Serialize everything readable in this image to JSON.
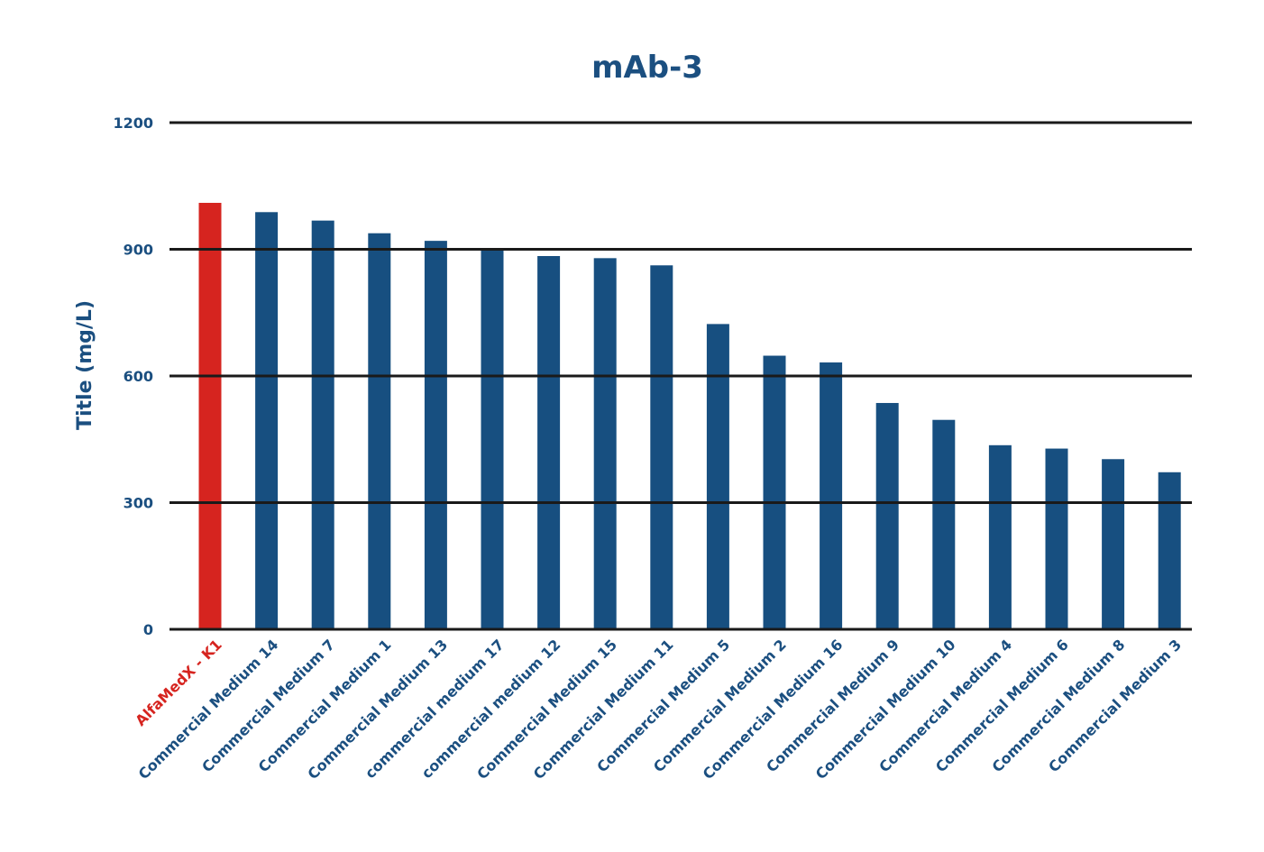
{
  "chart_data": {
    "type": "bar",
    "title": "mAb-3",
    "xlabel": "",
    "ylabel": "Title (mg/L)",
    "ylim": [
      0,
      1200
    ],
    "yticks": [
      0,
      300,
      600,
      900,
      1200
    ],
    "grid": true,
    "categories": [
      "AlfaMedX - K1",
      "Commercial Medium 14",
      "Commercial Medium 7",
      "Commercial Medium 1",
      "Commercial Medium 13",
      "commercial medium 17",
      "commercial medium 12",
      "Commercial Medium 15",
      "Commercial Medium 11",
      "Commercial Medium 5",
      "Commercial Medium 2",
      "Commercial Medium 16",
      "Commercial Medium 9",
      "Commercial Medium 10",
      "Commercial Medium 4",
      "Commercial Medium 6",
      "Commercial Medium 8",
      "Commercial Medium 3"
    ],
    "values": [
      1010,
      988,
      968,
      938,
      920,
      903,
      884,
      879,
      862,
      723,
      648,
      632,
      536,
      496,
      436,
      428,
      403,
      372
    ],
    "highlight_index": 0
  },
  "colors": {
    "text": "#1b4f80",
    "bar": "#174f80",
    "highlight": "#d6241f",
    "grid": "#1a1a1a"
  }
}
